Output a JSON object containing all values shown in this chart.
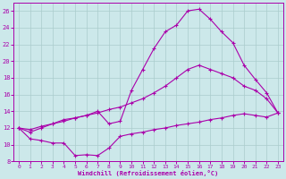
{
  "xlabel": "Windchill (Refroidissement éolien,°C)",
  "bg_color": "#cce8ea",
  "line_color": "#aa00aa",
  "grid_color": "#aacccc",
  "xlim": [
    -0.5,
    23.5
  ],
  "ylim": [
    8,
    27
  ],
  "yticks": [
    8,
    10,
    12,
    14,
    16,
    18,
    20,
    22,
    24,
    26
  ],
  "xticks": [
    0,
    1,
    2,
    3,
    4,
    5,
    6,
    7,
    8,
    9,
    10,
    11,
    12,
    13,
    14,
    15,
    16,
    17,
    18,
    19,
    20,
    21,
    22,
    23
  ],
  "curve1_x": [
    0,
    1,
    2,
    3,
    4,
    5,
    6,
    7,
    8,
    9,
    10,
    11,
    12,
    13,
    14,
    15,
    16,
    17,
    18,
    19,
    20,
    21,
    22,
    23
  ],
  "curve1_y": [
    12.0,
    10.7,
    10.5,
    10.2,
    10.2,
    8.7,
    8.8,
    8.7,
    9.6,
    11.0,
    11.3,
    11.5,
    11.8,
    12.0,
    12.3,
    12.5,
    12.7,
    13.0,
    13.2,
    13.5,
    13.7,
    13.5,
    13.3,
    13.8
  ],
  "curve2_x": [
    0,
    1,
    2,
    3,
    4,
    5,
    6,
    7,
    8,
    9,
    10,
    11,
    12,
    13,
    14,
    15,
    16,
    17,
    18,
    19,
    20,
    21,
    22,
    23
  ],
  "curve2_y": [
    12.0,
    11.8,
    12.2,
    12.5,
    12.8,
    13.2,
    13.5,
    13.8,
    14.2,
    14.5,
    15.0,
    15.5,
    16.2,
    17.0,
    18.0,
    19.0,
    19.5,
    19.0,
    18.5,
    18.0,
    17.0,
    16.5,
    15.5,
    13.8
  ],
  "curve3_x": [
    0,
    1,
    2,
    3,
    4,
    5,
    6,
    7,
    8,
    9,
    10,
    11,
    12,
    13,
    14,
    15,
    16,
    17,
    18,
    19,
    20,
    21,
    22,
    23
  ],
  "curve3_y": [
    12.0,
    11.5,
    12.0,
    12.5,
    13.0,
    13.2,
    13.5,
    14.0,
    12.5,
    12.8,
    16.5,
    19.0,
    21.5,
    23.5,
    24.3,
    26.0,
    26.2,
    25.0,
    23.5,
    22.2,
    19.5,
    17.8,
    16.2,
    13.8
  ]
}
